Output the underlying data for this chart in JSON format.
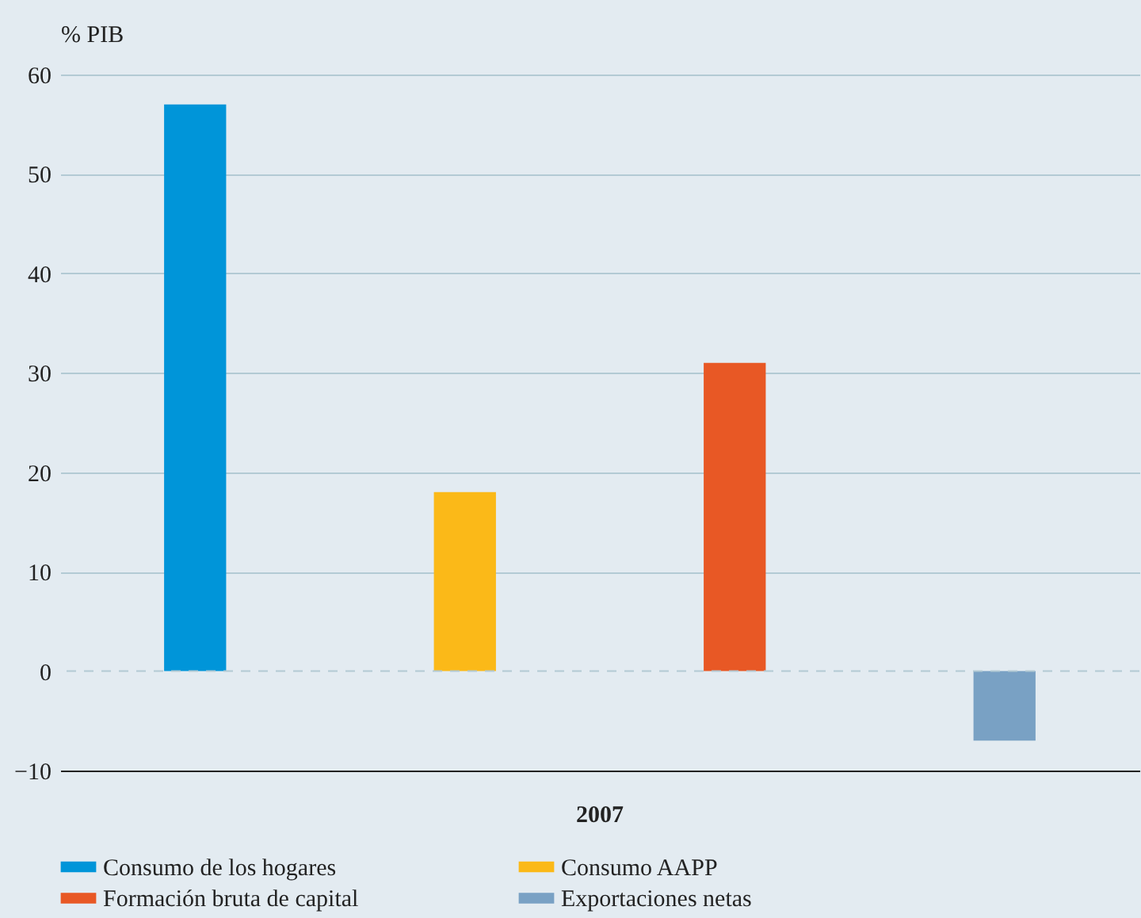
{
  "chart_data": {
    "type": "bar",
    "ylabel": "% PIB",
    "categories": [
      "2007"
    ],
    "series": [
      {
        "name": "Consumo de los hogares",
        "color": "#0095d9",
        "values": [
          57
        ]
      },
      {
        "name": "Consumo AAPP",
        "color": "#fbb918",
        "values": [
          18
        ]
      },
      {
        "name": "Formación bruta de capital",
        "color": "#e85825",
        "values": [
          31
        ]
      },
      {
        "name": "Exportaciones netas",
        "color": "#79a1c4",
        "values": [
          -7
        ]
      }
    ],
    "ylim": [
      -10,
      60
    ],
    "yticks": [
      -10,
      0,
      10,
      20,
      30,
      40,
      50,
      60
    ],
    "grid": "y",
    "legend": "bottom",
    "ref_lines": [
      {
        "axis": "y",
        "value": 0,
        "color": "#b3cad4",
        "line_style": "dashed"
      }
    ]
  }
}
